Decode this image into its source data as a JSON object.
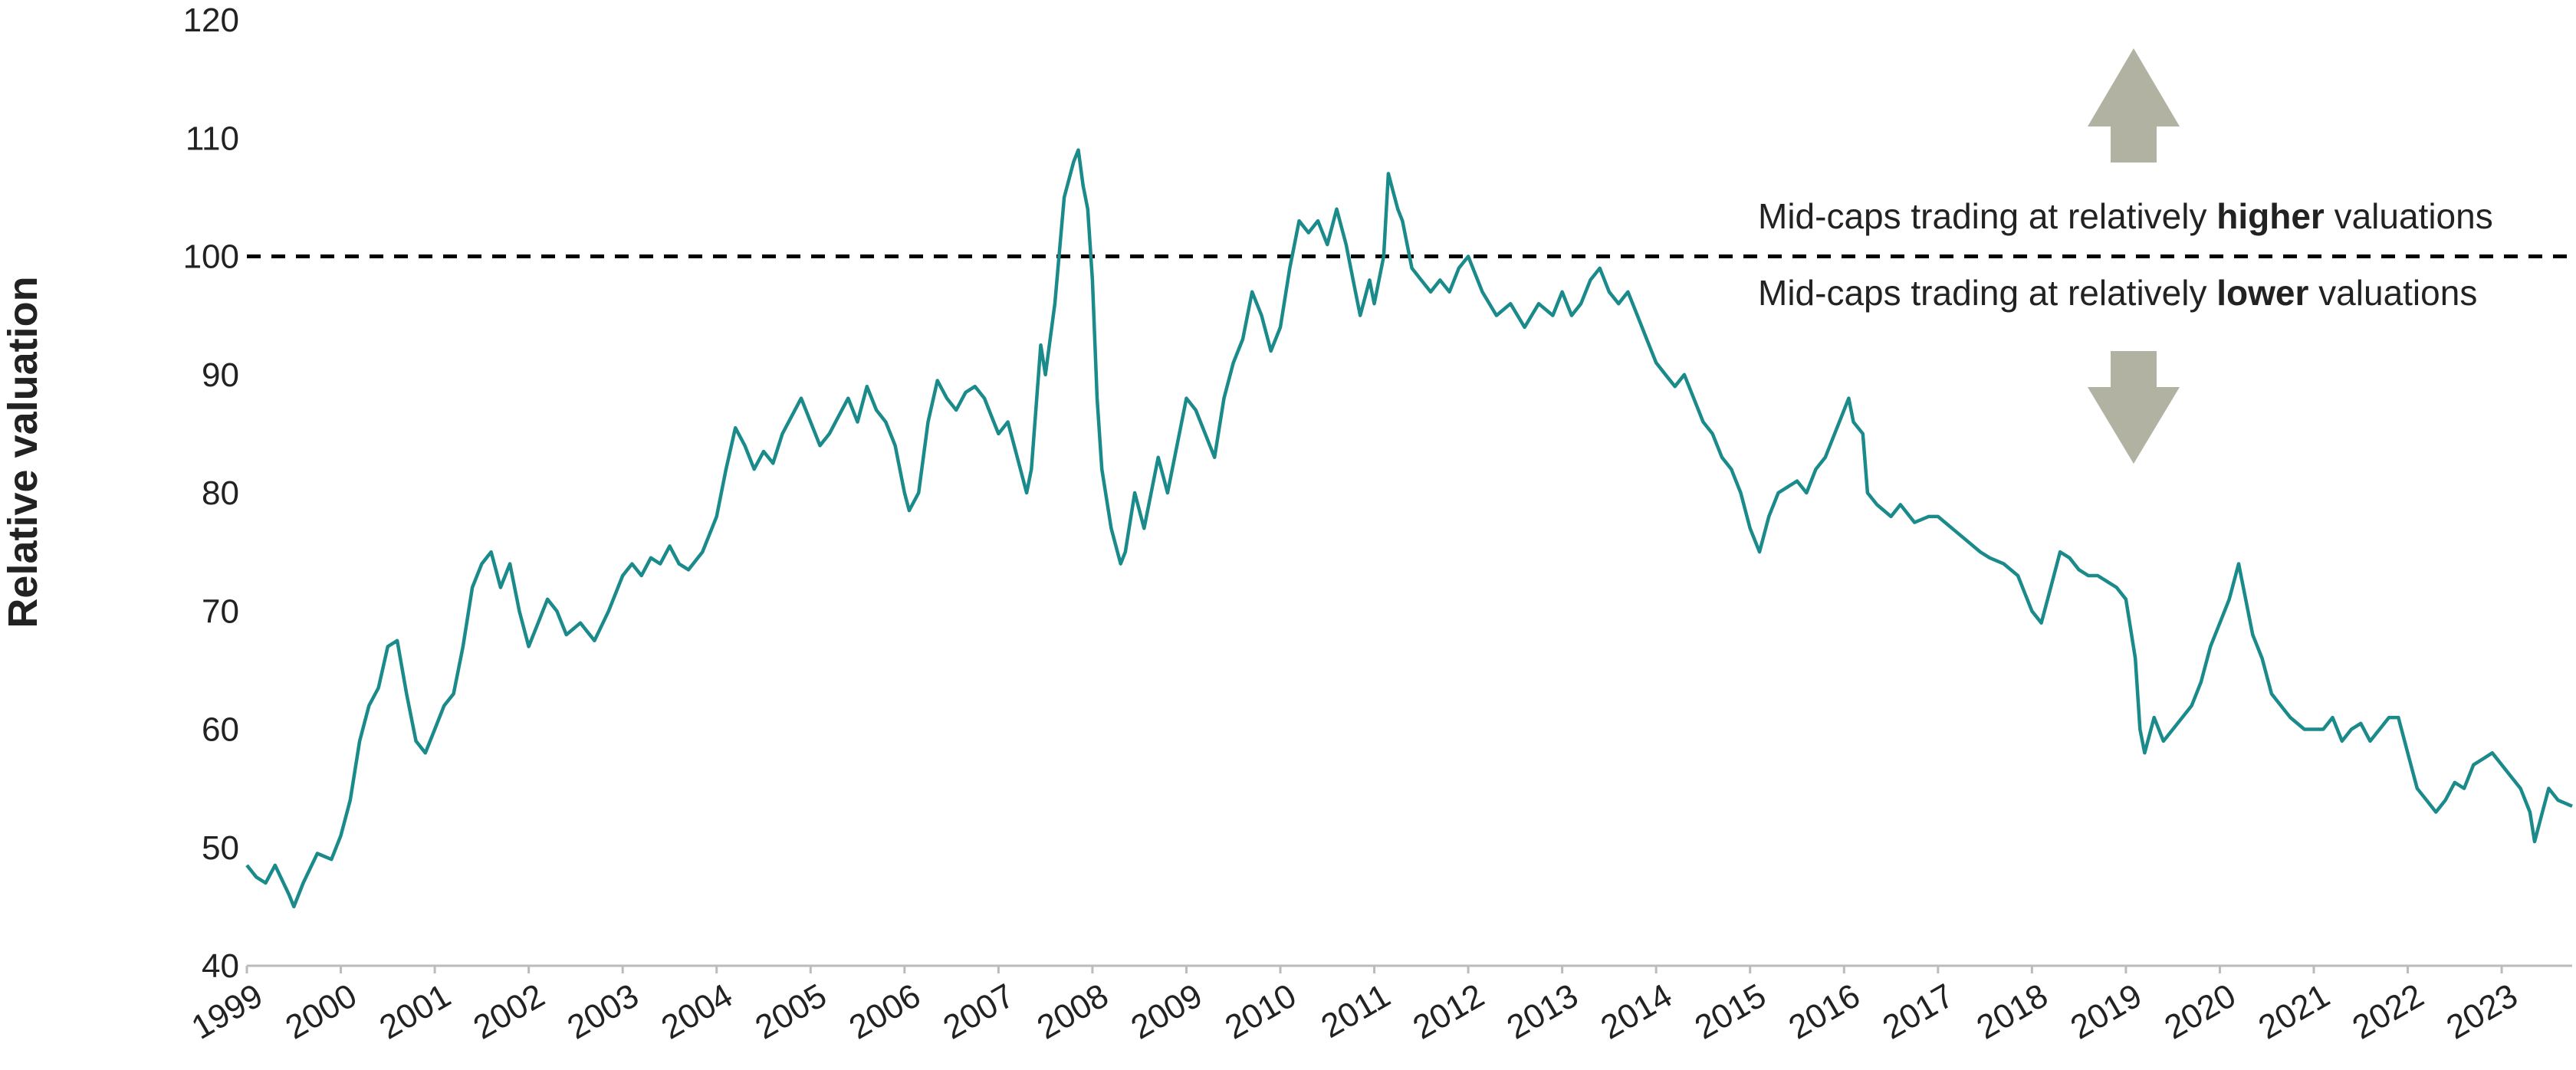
{
  "chart_data": {
    "type": "line",
    "title": "",
    "xlabel": "",
    "ylabel": "Relative valuation",
    "ylim": [
      40,
      120
    ],
    "yticks": [
      40,
      50,
      60,
      70,
      80,
      90,
      100,
      110,
      120
    ],
    "xlim": [
      1999,
      2023.75
    ],
    "xticks": [
      "1999",
      "2000",
      "2001",
      "2002",
      "2003",
      "2004",
      "2005",
      "2006",
      "2007",
      "2008",
      "2009",
      "2010",
      "2011",
      "2012",
      "2013",
      "2014",
      "2015",
      "2016",
      "2017",
      "2018",
      "2019",
      "2020",
      "2021",
      "2022",
      "2023"
    ],
    "reference_line": {
      "value": 100,
      "style": "dashed"
    },
    "annotations": {
      "upper": {
        "prefix": "Mid-caps trading at relatively ",
        "emphasis": "higher",
        "suffix": " valuations"
      },
      "lower": {
        "prefix": "Mid-caps trading at relatively ",
        "emphasis": "lower",
        "suffix": " valuations"
      }
    },
    "colors": {
      "line": "#1a8a8a",
      "arrow": "#b1b2a2",
      "axis": "#bbbbbb",
      "text": "#222222"
    },
    "series": [
      {
        "name": "Relative valuation",
        "points": [
          [
            1999.0,
            48.5
          ],
          [
            1999.1,
            47.5
          ],
          [
            1999.2,
            47.0
          ],
          [
            1999.3,
            48.5
          ],
          [
            1999.45,
            46.0
          ],
          [
            1999.5,
            45.0
          ],
          [
            1999.6,
            47.0
          ],
          [
            1999.75,
            49.5
          ],
          [
            1999.9,
            49.0
          ],
          [
            2000.0,
            51.0
          ],
          [
            2000.1,
            54.0
          ],
          [
            2000.2,
            59.0
          ],
          [
            2000.3,
            62.0
          ],
          [
            2000.4,
            63.5
          ],
          [
            2000.5,
            67.0
          ],
          [
            2000.6,
            67.5
          ],
          [
            2000.7,
            63.0
          ],
          [
            2000.8,
            59.0
          ],
          [
            2000.9,
            58.0
          ],
          [
            2001.0,
            60.0
          ],
          [
            2001.1,
            62.0
          ],
          [
            2001.2,
            63.0
          ],
          [
            2001.3,
            67.0
          ],
          [
            2001.4,
            72.0
          ],
          [
            2001.5,
            74.0
          ],
          [
            2001.6,
            75.0
          ],
          [
            2001.7,
            72.0
          ],
          [
            2001.8,
            74.0
          ],
          [
            2001.9,
            70.0
          ],
          [
            2002.0,
            67.0
          ],
          [
            2002.1,
            69.0
          ],
          [
            2002.2,
            71.0
          ],
          [
            2002.3,
            70.0
          ],
          [
            2002.4,
            68.0
          ],
          [
            2002.55,
            69.0
          ],
          [
            2002.7,
            67.5
          ],
          [
            2002.85,
            70.0
          ],
          [
            2003.0,
            73.0
          ],
          [
            2003.1,
            74.0
          ],
          [
            2003.2,
            73.0
          ],
          [
            2003.3,
            74.5
          ],
          [
            2003.4,
            74.0
          ],
          [
            2003.5,
            75.5
          ],
          [
            2003.6,
            74.0
          ],
          [
            2003.7,
            73.5
          ],
          [
            2003.85,
            75.0
          ],
          [
            2004.0,
            78.0
          ],
          [
            2004.1,
            82.0
          ],
          [
            2004.2,
            85.5
          ],
          [
            2004.3,
            84.0
          ],
          [
            2004.4,
            82.0
          ],
          [
            2004.5,
            83.5
          ],
          [
            2004.6,
            82.5
          ],
          [
            2004.7,
            85.0
          ],
          [
            2004.8,
            86.5
          ],
          [
            2004.9,
            88.0
          ],
          [
            2005.0,
            86.0
          ],
          [
            2005.1,
            84.0
          ],
          [
            2005.2,
            85.0
          ],
          [
            2005.3,
            86.5
          ],
          [
            2005.4,
            88.0
          ],
          [
            2005.5,
            86.0
          ],
          [
            2005.6,
            89.0
          ],
          [
            2005.7,
            87.0
          ],
          [
            2005.8,
            86.0
          ],
          [
            2005.9,
            84.0
          ],
          [
            2006.0,
            80.0
          ],
          [
            2006.05,
            78.5
          ],
          [
            2006.15,
            80.0
          ],
          [
            2006.25,
            86.0
          ],
          [
            2006.35,
            89.5
          ],
          [
            2006.45,
            88.0
          ],
          [
            2006.55,
            87.0
          ],
          [
            2006.65,
            88.5
          ],
          [
            2006.75,
            89.0
          ],
          [
            2006.85,
            88.0
          ],
          [
            2006.95,
            86.0
          ],
          [
            2007.0,
            85.0
          ],
          [
            2007.1,
            86.0
          ],
          [
            2007.2,
            83.0
          ],
          [
            2007.3,
            80.0
          ],
          [
            2007.35,
            82.0
          ],
          [
            2007.45,
            92.5
          ],
          [
            2007.5,
            90.0
          ],
          [
            2007.6,
            96.0
          ],
          [
            2007.7,
            105.0
          ],
          [
            2007.8,
            108.0
          ],
          [
            2007.85,
            109.0
          ],
          [
            2007.9,
            106.0
          ],
          [
            2007.95,
            104.0
          ],
          [
            2008.0,
            98.0
          ],
          [
            2008.05,
            88.0
          ],
          [
            2008.1,
            82.0
          ],
          [
            2008.2,
            77.0
          ],
          [
            2008.3,
            74.0
          ],
          [
            2008.35,
            75.0
          ],
          [
            2008.45,
            80.0
          ],
          [
            2008.55,
            77.0
          ],
          [
            2008.7,
            83.0
          ],
          [
            2008.8,
            80.0
          ],
          [
            2008.9,
            84.0
          ],
          [
            2009.0,
            88.0
          ],
          [
            2009.1,
            87.0
          ],
          [
            2009.2,
            85.0
          ],
          [
            2009.3,
            83.0
          ],
          [
            2009.4,
            88.0
          ],
          [
            2009.5,
            91.0
          ],
          [
            2009.6,
            93.0
          ],
          [
            2009.7,
            97.0
          ],
          [
            2009.8,
            95.0
          ],
          [
            2009.9,
            92.0
          ],
          [
            2010.0,
            94.0
          ],
          [
            2010.1,
            99.0
          ],
          [
            2010.2,
            103.0
          ],
          [
            2010.3,
            102.0
          ],
          [
            2010.4,
            103.0
          ],
          [
            2010.5,
            101.0
          ],
          [
            2010.6,
            104.0
          ],
          [
            2010.7,
            101.0
          ],
          [
            2010.8,
            97.0
          ],
          [
            2010.85,
            95.0
          ],
          [
            2010.95,
            98.0
          ],
          [
            2011.0,
            96.0
          ],
          [
            2011.1,
            100.0
          ],
          [
            2011.15,
            107.0
          ],
          [
            2011.25,
            104.0
          ],
          [
            2011.3,
            103.0
          ],
          [
            2011.4,
            99.0
          ],
          [
            2011.5,
            98.0
          ],
          [
            2011.6,
            97.0
          ],
          [
            2011.7,
            98.0
          ],
          [
            2011.8,
            97.0
          ],
          [
            2011.9,
            99.0
          ],
          [
            2012.0,
            100.0
          ],
          [
            2012.05,
            99.0
          ],
          [
            2012.15,
            97.0
          ],
          [
            2012.3,
            95.0
          ],
          [
            2012.45,
            96.0
          ],
          [
            2012.6,
            94.0
          ],
          [
            2012.75,
            96.0
          ],
          [
            2012.9,
            95.0
          ],
          [
            2013.0,
            97.0
          ],
          [
            2013.1,
            95.0
          ],
          [
            2013.2,
            96.0
          ],
          [
            2013.3,
            98.0
          ],
          [
            2013.4,
            99.0
          ],
          [
            2013.5,
            97.0
          ],
          [
            2013.6,
            96.0
          ],
          [
            2013.7,
            97.0
          ],
          [
            2013.8,
            95.0
          ],
          [
            2013.9,
            93.0
          ],
          [
            2014.0,
            91.0
          ],
          [
            2014.1,
            90.0
          ],
          [
            2014.2,
            89.0
          ],
          [
            2014.3,
            90.0
          ],
          [
            2014.4,
            88.0
          ],
          [
            2014.5,
            86.0
          ],
          [
            2014.6,
            85.0
          ],
          [
            2014.7,
            83.0
          ],
          [
            2014.8,
            82.0
          ],
          [
            2014.9,
            80.0
          ],
          [
            2015.0,
            77.0
          ],
          [
            2015.1,
            75.0
          ],
          [
            2015.2,
            78.0
          ],
          [
            2015.3,
            80.0
          ],
          [
            2015.4,
            80.5
          ],
          [
            2015.5,
            81.0
          ],
          [
            2015.6,
            80.0
          ],
          [
            2015.7,
            82.0
          ],
          [
            2015.8,
            83.0
          ],
          [
            2015.9,
            85.0
          ],
          [
            2016.0,
            87.0
          ],
          [
            2016.05,
            88.0
          ],
          [
            2016.1,
            86.0
          ],
          [
            2016.2,
            85.0
          ],
          [
            2016.25,
            80.0
          ],
          [
            2016.35,
            79.0
          ],
          [
            2016.5,
            78.0
          ],
          [
            2016.6,
            79.0
          ],
          [
            2016.75,
            77.5
          ],
          [
            2016.9,
            78.0
          ],
          [
            2017.0,
            78.0
          ],
          [
            2017.15,
            77.0
          ],
          [
            2017.3,
            76.0
          ],
          [
            2017.45,
            75.0
          ],
          [
            2017.55,
            74.5
          ],
          [
            2017.7,
            74.0
          ],
          [
            2017.85,
            73.0
          ],
          [
            2017.95,
            71.0
          ],
          [
            2018.0,
            70.0
          ],
          [
            2018.1,
            69.0
          ],
          [
            2018.2,
            72.0
          ],
          [
            2018.3,
            75.0
          ],
          [
            2018.4,
            74.5
          ],
          [
            2018.5,
            73.5
          ],
          [
            2018.6,
            73.0
          ],
          [
            2018.7,
            73.0
          ],
          [
            2018.8,
            72.5
          ],
          [
            2018.9,
            72.0
          ],
          [
            2019.0,
            71.0
          ],
          [
            2019.1,
            66.0
          ],
          [
            2019.15,
            60.0
          ],
          [
            2019.2,
            58.0
          ],
          [
            2019.3,
            61.0
          ],
          [
            2019.4,
            59.0
          ],
          [
            2019.5,
            60.0
          ],
          [
            2019.6,
            61.0
          ],
          [
            2019.7,
            62.0
          ],
          [
            2019.8,
            64.0
          ],
          [
            2019.9,
            67.0
          ],
          [
            2020.0,
            69.0
          ],
          [
            2020.1,
            71.0
          ],
          [
            2020.2,
            74.0
          ],
          [
            2020.25,
            72.0
          ],
          [
            2020.35,
            68.0
          ],
          [
            2020.45,
            66.0
          ],
          [
            2020.55,
            63.0
          ],
          [
            2020.65,
            62.0
          ],
          [
            2020.75,
            61.0
          ],
          [
            2020.9,
            60.0
          ],
          [
            2021.0,
            60.0
          ],
          [
            2021.1,
            60.0
          ],
          [
            2021.2,
            61.0
          ],
          [
            2021.3,
            59.0
          ],
          [
            2021.4,
            60.0
          ],
          [
            2021.5,
            60.5
          ],
          [
            2021.6,
            59.0
          ],
          [
            2021.7,
            60.0
          ],
          [
            2021.8,
            61.0
          ],
          [
            2021.9,
            61.0
          ],
          [
            2022.0,
            58.0
          ],
          [
            2022.1,
            55.0
          ],
          [
            2022.2,
            54.0
          ],
          [
            2022.3,
            53.0
          ],
          [
            2022.4,
            54.0
          ],
          [
            2022.5,
            55.5
          ],
          [
            2022.6,
            55.0
          ],
          [
            2022.7,
            57.0
          ],
          [
            2022.8,
            57.5
          ],
          [
            2022.9,
            58.0
          ],
          [
            2023.0,
            57.0
          ],
          [
            2023.1,
            56.0
          ],
          [
            2023.2,
            55.0
          ],
          [
            2023.3,
            53.0
          ],
          [
            2023.35,
            50.5
          ],
          [
            2023.4,
            52.0
          ],
          [
            2023.5,
            55.0
          ],
          [
            2023.6,
            54.0
          ],
          [
            2023.75,
            53.5
          ]
        ]
      }
    ]
  }
}
